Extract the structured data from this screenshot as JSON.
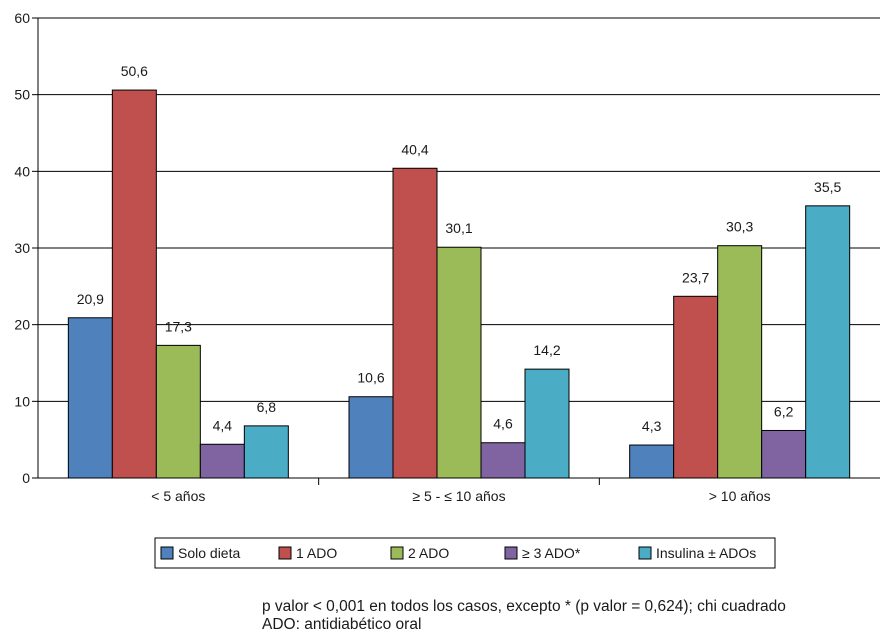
{
  "chart_data": {
    "type": "bar",
    "categories": [
      "< 5 años",
      "≥ 5 - ≤ 10 años",
      "> 10 años"
    ],
    "series": [
      {
        "name": "Solo dieta",
        "color": "#4F81BD",
        "values": [
          20.9,
          10.6,
          4.3
        ],
        "labels": [
          "20,9",
          "10,6",
          "4,3"
        ]
      },
      {
        "name": "1 ADO",
        "color": "#C0504D",
        "values": [
          50.6,
          40.4,
          23.7
        ],
        "labels": [
          "50,6",
          "40,4",
          "23,7"
        ]
      },
      {
        "name": "2 ADO",
        "color": "#9BBB59",
        "values": [
          17.3,
          30.1,
          30.3
        ],
        "labels": [
          "17,3",
          "30,1",
          "30,3"
        ]
      },
      {
        "name": "≥ 3 ADO*",
        "color": "#8064A2",
        "values": [
          4.4,
          4.6,
          6.2
        ],
        "labels": [
          "4,4",
          "4,6",
          "6,2"
        ]
      },
      {
        "name": "Insulina ± ADOs",
        "color": "#4BACC6",
        "values": [
          6.8,
          14.2,
          35.5
        ],
        "labels": [
          "6,8",
          "14,2",
          "35,5"
        ]
      }
    ],
    "ylim": [
      0,
      60
    ],
    "yticks": [
      0,
      10,
      20,
      30,
      40,
      50,
      60
    ],
    "grid": true,
    "legend": "bottom",
    "xlabel": "",
    "ylabel": "",
    "title": ""
  },
  "footnotes": {
    "line1": "p valor < 0,001 en todos los casos, excepto * (p valor = 0,624); chi cuadrado",
    "line2": "ADO: antidiabético oral"
  }
}
